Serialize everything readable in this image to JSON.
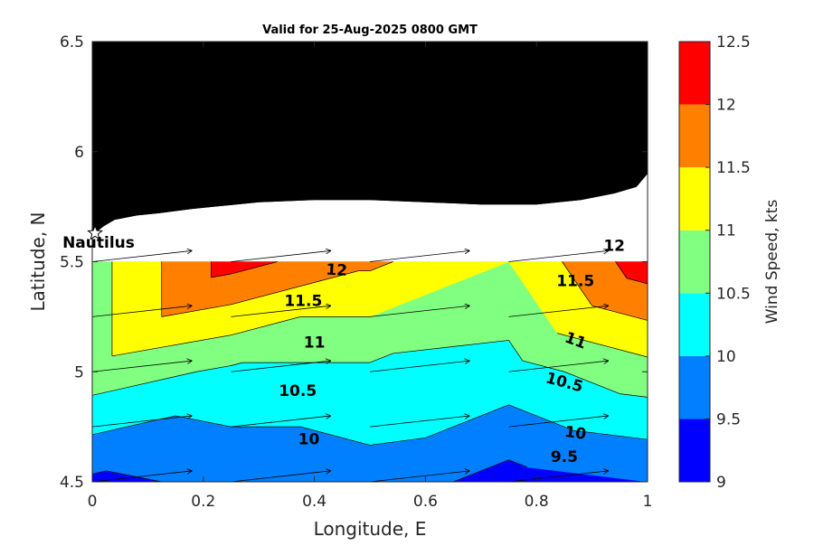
{
  "chart_data": {
    "type": "contour",
    "title": "Valid for 25-Aug-2025 0800 GMT",
    "xlabel": "Longitude, E",
    "ylabel": "Latitude, N",
    "xlim": [
      0,
      1
    ],
    "ylim": [
      4.5,
      6.5
    ],
    "x_ticks": [
      "0",
      "0.2",
      "0.4",
      "0.6",
      "0.8",
      "1"
    ],
    "y_ticks": [
      "4.5",
      "5",
      "5.5",
      "6",
      "6.5"
    ],
    "colorbar": {
      "label": "Wind Speed, kts",
      "levels": [
        9,
        9.5,
        10,
        10.5,
        11,
        11.5,
        12,
        12.5
      ],
      "tick_labels": [
        "9",
        "9.5",
        "10",
        "10.5",
        "11",
        "11.5",
        "12",
        "12.5"
      ],
      "colors": [
        "#0000ff",
        "#0080ff",
        "#00ffff",
        "#80ff80",
        "#ffff00",
        "#ff8000",
        "#ff0000"
      ]
    },
    "grid_x": [
      0,
      0.25,
      0.5,
      0.75,
      1
    ],
    "grid_y": [
      4.5,
      5.0,
      5.5
    ],
    "wind_speed_kts": [
      [
        9.4,
        9.6,
        9.8,
        9.3,
        9.5
      ],
      [
        10.8,
        10.4,
        10.4,
        10.3,
        10.8
      ],
      [
        10.8,
        12.2,
        11.6,
        11.0,
        12.3
      ]
    ],
    "contour_labels": [
      {
        "text": "12",
        "lon": 0.44,
        "lat": 5.46,
        "rot": 3
      },
      {
        "text": "12",
        "lon": 0.94,
        "lat": 5.57,
        "rot": 0
      },
      {
        "text": "11.5",
        "lon": 0.38,
        "lat": 5.32,
        "rot": 0
      },
      {
        "text": "11.5",
        "lon": 0.87,
        "lat": 5.41,
        "rot": 0
      },
      {
        "text": "11",
        "lon": 0.4,
        "lat": 5.13,
        "rot": 0
      },
      {
        "text": "11",
        "lon": 0.87,
        "lat": 5.14,
        "rot": 20
      },
      {
        "text": "10.5",
        "lon": 0.37,
        "lat": 4.91,
        "rot": 0
      },
      {
        "text": "10.5",
        "lon": 0.85,
        "lat": 4.95,
        "rot": 15
      },
      {
        "text": "10",
        "lon": 0.39,
        "lat": 4.69,
        "rot": 0
      },
      {
        "text": "10",
        "lon": 0.87,
        "lat": 4.72,
        "rot": 8
      },
      {
        "text": "9.5",
        "lon": 0.85,
        "lat": 4.61,
        "rot": 0
      }
    ],
    "wind_arrows": {
      "lons": [
        0,
        0.25,
        0.5,
        0.75
      ],
      "lats": [
        4.5,
        4.75,
        5.0,
        5.25,
        5.5
      ],
      "u": 0.18,
      "v": 0.05
    },
    "coast": [
      [
        0,
        5.5
      ],
      [
        0,
        5.62
      ],
      [
        0.02,
        5.66
      ],
      [
        0.04,
        5.69
      ],
      [
        0.08,
        5.71
      ],
      [
        0.12,
        5.72
      ],
      [
        0.18,
        5.74
      ],
      [
        0.22,
        5.75
      ],
      [
        0.3,
        5.77
      ],
      [
        0.4,
        5.78
      ],
      [
        0.5,
        5.78
      ],
      [
        0.6,
        5.77
      ],
      [
        0.7,
        5.76
      ],
      [
        0.8,
        5.76
      ],
      [
        0.88,
        5.78
      ],
      [
        0.94,
        5.81
      ],
      [
        0.98,
        5.84
      ],
      [
        1.0,
        5.9
      ],
      [
        1.0,
        5.5
      ]
    ],
    "station": {
      "name": "Nautilus",
      "lon": 0.005,
      "lat": 5.63
    },
    "background": "land-black-sea-white"
  }
}
